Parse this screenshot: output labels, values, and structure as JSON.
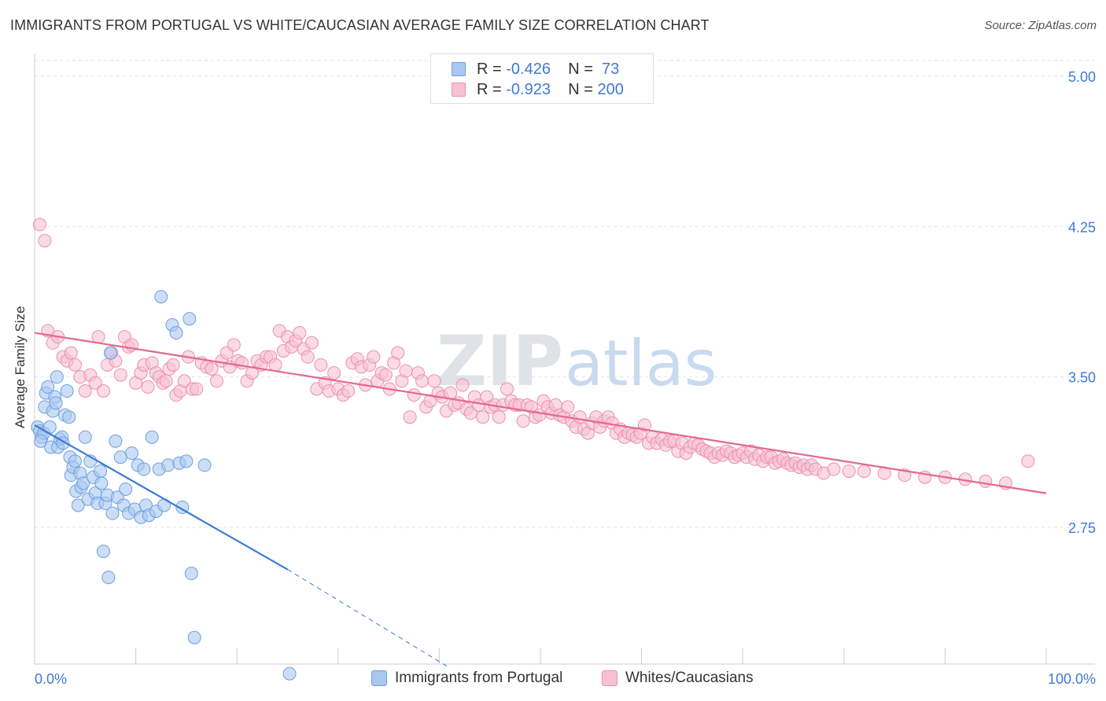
{
  "header": {
    "title": "IMMIGRANTS FROM PORTUGAL VS WHITE/CAUCASIAN AVERAGE FAMILY SIZE CORRELATION CHART",
    "source": "Source: ZipAtlas.com"
  },
  "watermark": {
    "part1": "ZIP",
    "part2": "atlas"
  },
  "stats_legend": {
    "rows": [
      {
        "r_label": "R = ",
        "r_value": "-0.426",
        "n_label": "N = ",
        "n_value": " 73",
        "color": "#a9c8f0",
        "border": "#6f9fe0"
      },
      {
        "r_label": "R = ",
        "r_value": "-0.923",
        "n_label": "N = ",
        "n_value": "200",
        "color": "#f7c1d3",
        "border": "#ec8fb0"
      }
    ]
  },
  "chart_data": {
    "type": "scatter",
    "xlabel": "",
    "ylabel": "Average Family Size",
    "xlim": [
      0,
      100
    ],
    "ylim": [
      2.0,
      5.1
    ],
    "x_tick_labels": [
      "0.0%",
      "100.0%"
    ],
    "y_ticks": [
      2.75,
      3.5,
      4.25,
      5.0
    ],
    "y_tick_labels": [
      "2.75",
      "3.50",
      "4.25",
      "5.00"
    ],
    "grid": "horizontal dashed",
    "legend_position": "bottom",
    "series": [
      {
        "name": "Immigrants from Portugal",
        "color": "#a9c8f0",
        "stroke": "#6f9fe0",
        "line_color": "#3a7bd5",
        "trend": {
          "x0": 0,
          "y0": 3.26,
          "x1": 25,
          "y1": 2.54,
          "dash_to_x": 41,
          "dash_to_y": 2.05
        },
        "points": [
          [
            0.3,
            3.25
          ],
          [
            0.5,
            3.23
          ],
          [
            0.7,
            3.2
          ],
          [
            0.9,
            3.22
          ],
          [
            0.6,
            3.18
          ],
          [
            1.0,
            3.35
          ],
          [
            1.1,
            3.42
          ],
          [
            1.3,
            3.45
          ],
          [
            1.5,
            3.25
          ],
          [
            1.6,
            3.15
          ],
          [
            1.8,
            3.33
          ],
          [
            2.0,
            3.4
          ],
          [
            2.1,
            3.37
          ],
          [
            2.2,
            3.5
          ],
          [
            2.3,
            3.15
          ],
          [
            2.5,
            3.19
          ],
          [
            2.7,
            3.2
          ],
          [
            2.8,
            3.17
          ],
          [
            3.0,
            3.31
          ],
          [
            3.2,
            3.43
          ],
          [
            3.4,
            3.3
          ],
          [
            3.5,
            3.1
          ],
          [
            3.6,
            3.01
          ],
          [
            3.8,
            3.05
          ],
          [
            4.0,
            3.08
          ],
          [
            4.1,
            2.93
          ],
          [
            4.3,
            2.86
          ],
          [
            4.5,
            3.02
          ],
          [
            4.6,
            2.95
          ],
          [
            4.8,
            2.97
          ],
          [
            5.0,
            3.2
          ],
          [
            5.3,
            2.89
          ],
          [
            5.5,
            3.08
          ],
          [
            5.8,
            3.0
          ],
          [
            6.0,
            2.92
          ],
          [
            6.2,
            2.87
          ],
          [
            6.5,
            3.03
          ],
          [
            6.6,
            2.97
          ],
          [
            6.8,
            2.63
          ],
          [
            7.0,
            2.87
          ],
          [
            7.2,
            2.91
          ],
          [
            7.5,
            3.62
          ],
          [
            7.7,
            2.82
          ],
          [
            8.0,
            3.18
          ],
          [
            8.2,
            2.9
          ],
          [
            8.5,
            3.1
          ],
          [
            8.8,
            2.86
          ],
          [
            9.0,
            2.94
          ],
          [
            9.3,
            2.82
          ],
          [
            9.6,
            3.12
          ],
          [
            9.9,
            2.84
          ],
          [
            10.2,
            3.06
          ],
          [
            10.5,
            2.8
          ],
          [
            10.8,
            3.04
          ],
          [
            7.3,
            2.5
          ],
          [
            11.0,
            2.86
          ],
          [
            11.3,
            2.81
          ],
          [
            11.6,
            3.2
          ],
          [
            12.0,
            2.83
          ],
          [
            12.3,
            3.04
          ],
          [
            12.5,
            3.9
          ],
          [
            12.8,
            2.86
          ],
          [
            13.2,
            3.06
          ],
          [
            13.6,
            3.76
          ],
          [
            14.0,
            3.72
          ],
          [
            14.3,
            3.07
          ],
          [
            14.6,
            2.85
          ],
          [
            15.0,
            3.08
          ],
          [
            15.3,
            3.79
          ],
          [
            15.5,
            2.52
          ],
          [
            15.8,
            2.2
          ],
          [
            16.8,
            3.06
          ],
          [
            25.2,
            2.02
          ]
        ]
      },
      {
        "name": "Whites/Caucasians",
        "color": "#f7c1d3",
        "stroke": "#ec8fb0",
        "line_color": "#e3688f",
        "trend": {
          "x0": 0,
          "y0": 3.72,
          "x1": 100,
          "y1": 2.92
        },
        "points": [
          [
            0.5,
            4.26
          ],
          [
            1.0,
            4.18
          ],
          [
            1.3,
            3.73
          ],
          [
            1.8,
            3.67
          ],
          [
            2.3,
            3.7
          ],
          [
            2.8,
            3.6
          ],
          [
            3.2,
            3.58
          ],
          [
            3.6,
            3.62
          ],
          [
            4.0,
            3.56
          ],
          [
            4.5,
            3.5
          ],
          [
            5.0,
            3.43
          ],
          [
            5.5,
            3.51
          ],
          [
            6.0,
            3.47
          ],
          [
            6.3,
            3.7
          ],
          [
            6.8,
            3.43
          ],
          [
            7.2,
            3.56
          ],
          [
            7.6,
            3.62
          ],
          [
            8.0,
            3.58
          ],
          [
            8.5,
            3.51
          ],
          [
            8.9,
            3.7
          ],
          [
            9.3,
            3.65
          ],
          [
            9.6,
            3.66
          ],
          [
            10.0,
            3.47
          ],
          [
            10.5,
            3.52
          ],
          [
            10.8,
            3.56
          ],
          [
            11.2,
            3.45
          ],
          [
            11.6,
            3.57
          ],
          [
            12.0,
            3.52
          ],
          [
            12.3,
            3.5
          ],
          [
            12.7,
            3.47
          ],
          [
            13.0,
            3.48
          ],
          [
            13.3,
            3.54
          ],
          [
            13.7,
            3.56
          ],
          [
            14.0,
            3.41
          ],
          [
            14.4,
            3.43
          ],
          [
            14.8,
            3.48
          ],
          [
            15.2,
            3.6
          ],
          [
            15.6,
            3.44
          ],
          [
            16.0,
            3.44
          ],
          [
            16.5,
            3.57
          ],
          [
            17.0,
            3.55
          ],
          [
            17.5,
            3.54
          ],
          [
            18.0,
            3.48
          ],
          [
            18.5,
            3.58
          ],
          [
            19.0,
            3.62
          ],
          [
            19.3,
            3.55
          ],
          [
            19.7,
            3.66
          ],
          [
            20.1,
            3.58
          ],
          [
            20.5,
            3.57
          ],
          [
            21.0,
            3.48
          ],
          [
            21.5,
            3.52
          ],
          [
            22.0,
            3.58
          ],
          [
            22.4,
            3.56
          ],
          [
            22.9,
            3.6
          ],
          [
            23.3,
            3.6
          ],
          [
            23.8,
            3.56
          ],
          [
            24.2,
            3.73
          ],
          [
            24.6,
            3.63
          ],
          [
            25.0,
            3.7
          ],
          [
            25.4,
            3.65
          ],
          [
            25.8,
            3.68
          ],
          [
            26.2,
            3.72
          ],
          [
            26.6,
            3.64
          ],
          [
            27.0,
            3.6
          ],
          [
            27.4,
            3.67
          ],
          [
            27.9,
            3.44
          ],
          [
            28.3,
            3.56
          ],
          [
            28.7,
            3.47
          ],
          [
            29.1,
            3.43
          ],
          [
            29.6,
            3.52
          ],
          [
            30.0,
            3.44
          ],
          [
            30.5,
            3.41
          ],
          [
            31.0,
            3.43
          ],
          [
            31.4,
            3.57
          ],
          [
            31.9,
            3.59
          ],
          [
            32.3,
            3.55
          ],
          [
            32.7,
            3.46
          ],
          [
            33.1,
            3.56
          ],
          [
            33.5,
            3.6
          ],
          [
            33.9,
            3.48
          ],
          [
            34.3,
            3.52
          ],
          [
            34.7,
            3.51
          ],
          [
            35.1,
            3.44
          ],
          [
            35.5,
            3.57
          ],
          [
            35.9,
            3.62
          ],
          [
            36.3,
            3.48
          ],
          [
            36.7,
            3.53
          ],
          [
            37.1,
            3.3
          ],
          [
            37.5,
            3.41
          ],
          [
            37.9,
            3.52
          ],
          [
            38.3,
            3.48
          ],
          [
            38.7,
            3.35
          ],
          [
            39.1,
            3.38
          ],
          [
            39.5,
            3.48
          ],
          [
            39.9,
            3.42
          ],
          [
            40.3,
            3.4
          ],
          [
            40.7,
            3.33
          ],
          [
            41.1,
            3.42
          ],
          [
            41.5,
            3.36
          ],
          [
            41.9,
            3.37
          ],
          [
            42.3,
            3.46
          ],
          [
            42.7,
            3.34
          ],
          [
            43.1,
            3.32
          ],
          [
            43.5,
            3.4
          ],
          [
            43.9,
            3.36
          ],
          [
            44.3,
            3.3
          ],
          [
            44.7,
            3.4
          ],
          [
            45.1,
            3.35
          ],
          [
            45.5,
            3.36
          ],
          [
            45.9,
            3.3
          ],
          [
            46.3,
            3.36
          ],
          [
            46.7,
            3.44
          ],
          [
            47.1,
            3.38
          ],
          [
            47.5,
            3.36
          ],
          [
            47.9,
            3.36
          ],
          [
            48.3,
            3.28
          ],
          [
            48.7,
            3.36
          ],
          [
            49.1,
            3.35
          ],
          [
            49.5,
            3.3
          ],
          [
            49.9,
            3.31
          ],
          [
            50.3,
            3.38
          ],
          [
            50.7,
            3.35
          ],
          [
            51.1,
            3.32
          ],
          [
            51.5,
            3.36
          ],
          [
            51.9,
            3.31
          ],
          [
            52.3,
            3.3
          ],
          [
            52.7,
            3.35
          ],
          [
            53.1,
            3.28
          ],
          [
            53.5,
            3.25
          ],
          [
            53.9,
            3.3
          ],
          [
            54.3,
            3.24
          ],
          [
            54.7,
            3.22
          ],
          [
            55.1,
            3.27
          ],
          [
            55.5,
            3.3
          ],
          [
            55.9,
            3.25
          ],
          [
            56.3,
            3.28
          ],
          [
            56.7,
            3.3
          ],
          [
            57.1,
            3.27
          ],
          [
            57.5,
            3.22
          ],
          [
            57.9,
            3.24
          ],
          [
            58.3,
            3.2
          ],
          [
            58.7,
            3.22
          ],
          [
            59.1,
            3.21
          ],
          [
            59.5,
            3.2
          ],
          [
            59.9,
            3.22
          ],
          [
            60.3,
            3.26
          ],
          [
            60.7,
            3.17
          ],
          [
            61.1,
            3.2
          ],
          [
            61.5,
            3.17
          ],
          [
            62.0,
            3.19
          ],
          [
            62.4,
            3.16
          ],
          [
            62.8,
            3.18
          ],
          [
            63.2,
            3.18
          ],
          [
            63.6,
            3.13
          ],
          [
            64.0,
            3.17
          ],
          [
            64.4,
            3.12
          ],
          [
            64.8,
            3.15
          ],
          [
            65.2,
            3.17
          ],
          [
            65.6,
            3.16
          ],
          [
            66.0,
            3.14
          ],
          [
            66.4,
            3.13
          ],
          [
            66.8,
            3.12
          ],
          [
            67.2,
            3.1
          ],
          [
            67.6,
            3.12
          ],
          [
            68.0,
            3.11
          ],
          [
            68.4,
            3.13
          ],
          [
            68.8,
            3.12
          ],
          [
            69.2,
            3.1
          ],
          [
            69.6,
            3.11
          ],
          [
            70.0,
            3.12
          ],
          [
            70.4,
            3.1
          ],
          [
            70.8,
            3.13
          ],
          [
            71.2,
            3.09
          ],
          [
            71.6,
            3.11
          ],
          [
            72.0,
            3.08
          ],
          [
            72.4,
            3.1
          ],
          [
            72.8,
            3.1
          ],
          [
            73.2,
            3.07
          ],
          [
            73.6,
            3.08
          ],
          [
            74.0,
            3.09
          ],
          [
            74.4,
            3.07
          ],
          [
            74.8,
            3.06
          ],
          [
            75.2,
            3.07
          ],
          [
            75.6,
            3.05
          ],
          [
            76.0,
            3.06
          ],
          [
            76.4,
            3.04
          ],
          [
            76.8,
            3.06
          ],
          [
            77.2,
            3.04
          ],
          [
            78.0,
            3.02
          ],
          [
            79.0,
            3.04
          ],
          [
            80.5,
            3.03
          ],
          [
            82.0,
            3.03
          ],
          [
            84.0,
            3.02
          ],
          [
            86.0,
            3.01
          ],
          [
            88.0,
            3.0
          ],
          [
            90.0,
            3.0
          ],
          [
            92.0,
            2.99
          ],
          [
            94.0,
            2.98
          ],
          [
            96.0,
            2.97
          ],
          [
            98.2,
            3.08
          ]
        ]
      }
    ]
  },
  "bottom_legend": [
    {
      "label": "Immigrants from Portugal",
      "color": "#a9c8f0",
      "border": "#6f9fe0"
    },
    {
      "label": "Whites/Caucasians",
      "color": "#f7c1d3",
      "border": "#ec8fb0"
    }
  ]
}
